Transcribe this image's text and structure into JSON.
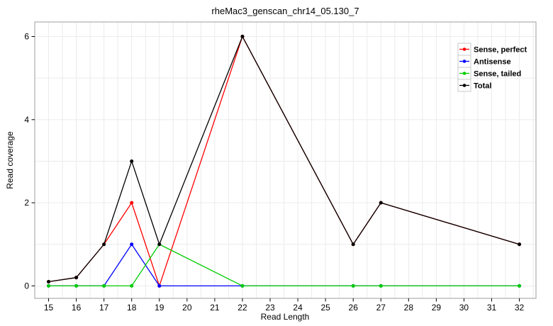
{
  "figure": {
    "background": "#ffffff",
    "plot_border_color": "#9e9e9e",
    "plot_background": "#ffffff"
  },
  "chart_data": {
    "type": "line",
    "title": "rheMac3_genscan_chr14_05.130_7",
    "xlabel": "Read Length",
    "ylabel": "Read coverage",
    "x": [
      15,
      16,
      17,
      18,
      19,
      22,
      26,
      27,
      32
    ],
    "series": [
      {
        "name": "Sense, perfect",
        "color": "#ff0000",
        "values": [
          0.1,
          0.2,
          1,
          2,
          0,
          6,
          1,
          2,
          1
        ]
      },
      {
        "name": "Antisense",
        "color": "#0000ff",
        "values": [
          0,
          0,
          0,
          1,
          0,
          0,
          0,
          0,
          0
        ]
      },
      {
        "name": "Sense, tailed",
        "color": "#00cc00",
        "values": [
          0,
          0,
          0,
          0,
          1,
          0,
          0,
          0,
          0
        ]
      },
      {
        "name": "Total",
        "color": "#000000",
        "values": [
          0.1,
          0.2,
          1,
          3,
          1,
          6,
          1,
          2,
          1
        ]
      }
    ],
    "x_ticks": [
      15,
      16,
      17,
      18,
      19,
      20,
      21,
      22,
      23,
      24,
      25,
      26,
      27,
      28,
      29,
      30,
      31,
      32
    ],
    "y_ticks": [
      0,
      2,
      4,
      6
    ],
    "xlim": [
      14.5,
      32.6
    ],
    "ylim": [
      -0.3,
      6.35
    ],
    "grid": {
      "on": true,
      "color": "#ebebeb",
      "x_step": 0.5,
      "y_step": 1
    },
    "legend": {
      "position": "top-right",
      "entries": [
        "Sense, perfect",
        "Antisense",
        "Sense, tailed",
        "Total"
      ]
    }
  }
}
